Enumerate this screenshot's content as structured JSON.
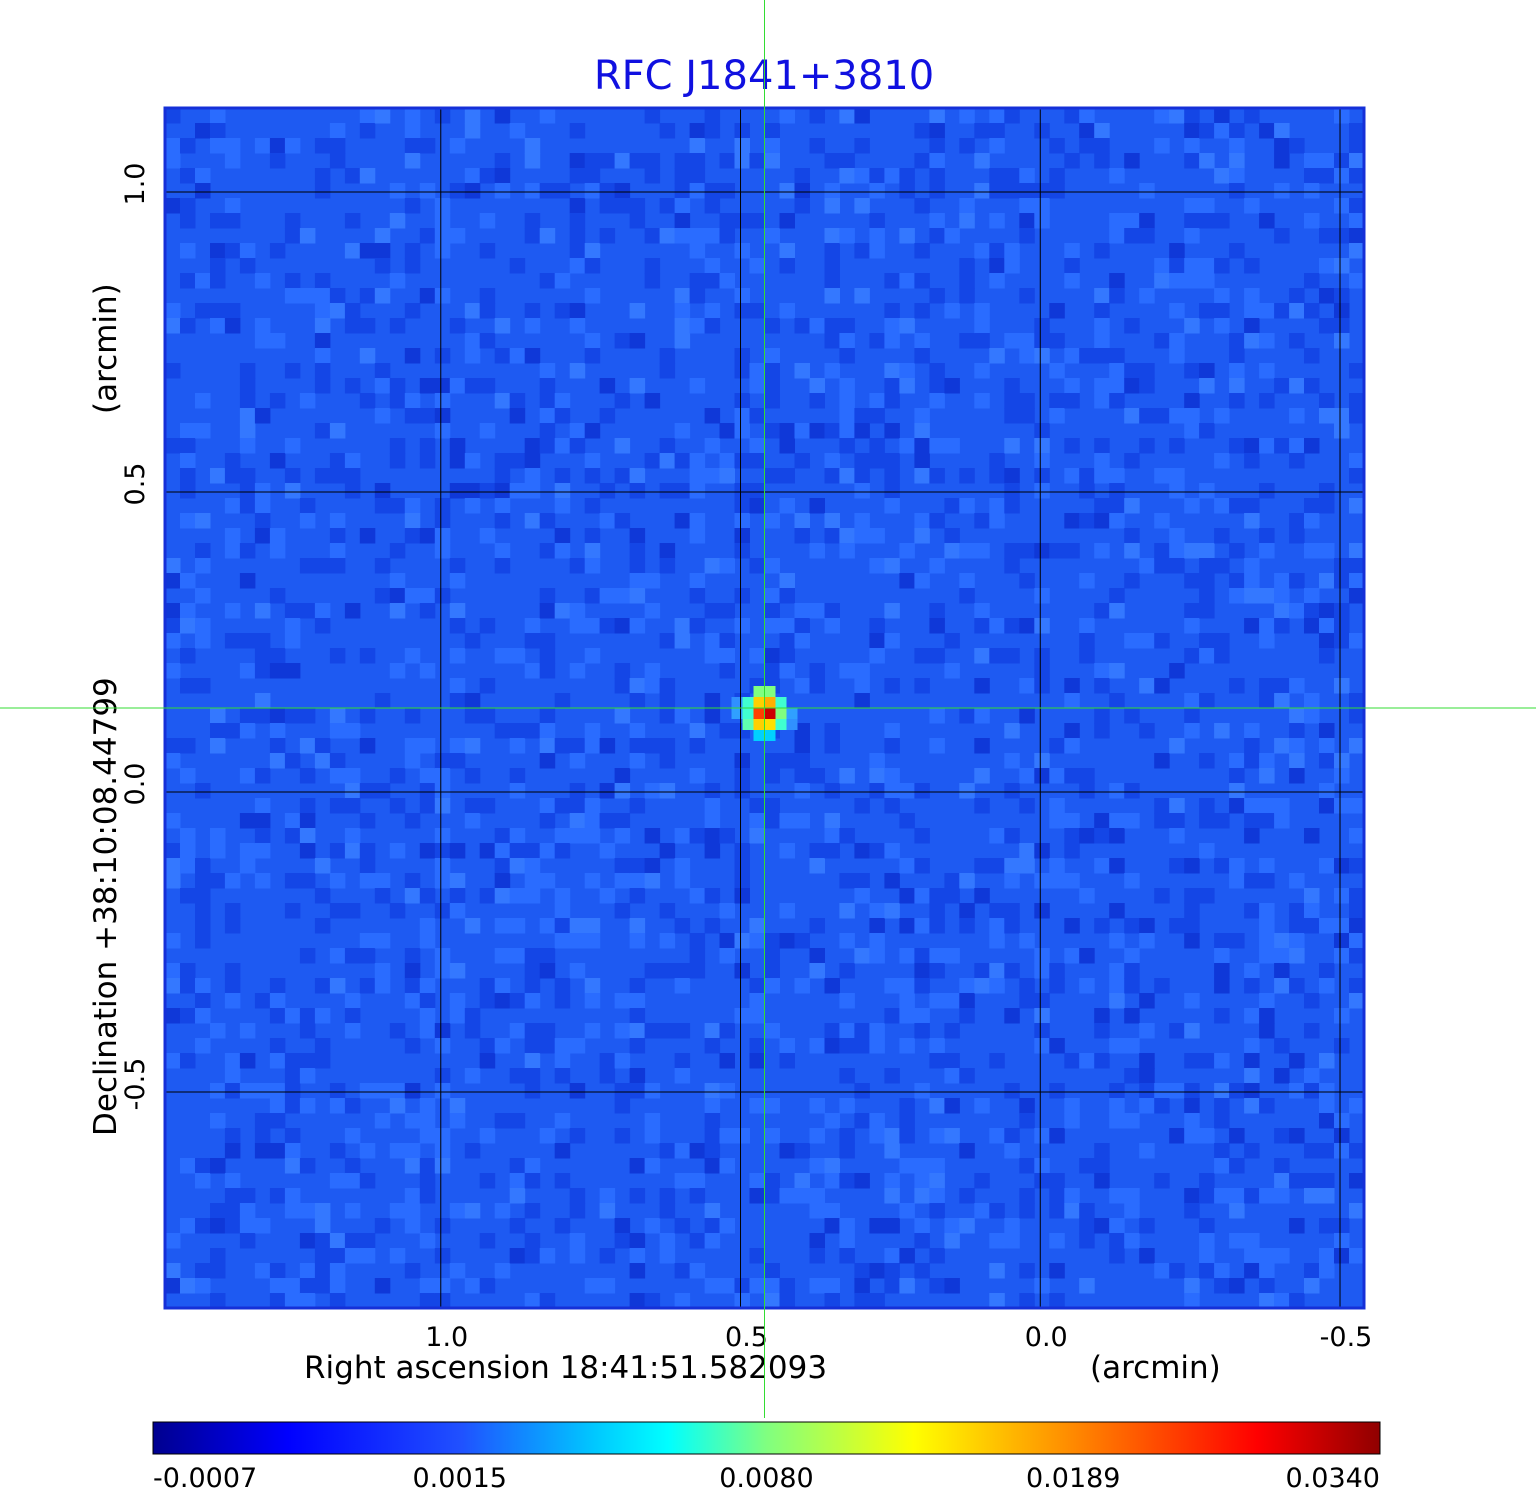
{
  "chart_data": {
    "type": "heatmap",
    "title": "RFC J1841+3810",
    "xlabel": "Right ascension  18:41:51.582093",
    "xunit": "(arcmin)",
    "ylabel": "Declination  +38:10:08.44799",
    "yunit": "(arcmin)",
    "x_ticks": [
      1.0,
      0.5,
      0.0,
      -0.5
    ],
    "x_tick_labels": [
      "1.0",
      "0.5",
      "0.0",
      "-0.5"
    ],
    "y_ticks": [
      1.0,
      0.5,
      0.0,
      -0.5
    ],
    "y_tick_labels": [
      "1.0",
      "0.5",
      "0.0",
      "-0.5"
    ],
    "xlim": [
      1.46,
      -0.54
    ],
    "ylim": [
      -0.86,
      1.14
    ],
    "x_direction": "decreasing",
    "grid": true,
    "colormap": "jet",
    "colorbar": {
      "placement": "bottom",
      "ticks": [
        -0.0007,
        0.0015,
        0.008,
        0.0189,
        0.034
      ],
      "tick_labels": [
        "-0.0007",
        "0.0015",
        "0.0080",
        "0.0189",
        "0.0340"
      ]
    },
    "background_level": 0.0005,
    "source": {
      "x": 0.46,
      "y": 0.14,
      "peak": 0.034
    },
    "crosshair": {
      "x": 0.46,
      "y": 0.14,
      "color": "#33dd33"
    },
    "colors": {
      "title": "#1010e0",
      "frame": "#1530d8",
      "grid": "#000000"
    }
  }
}
